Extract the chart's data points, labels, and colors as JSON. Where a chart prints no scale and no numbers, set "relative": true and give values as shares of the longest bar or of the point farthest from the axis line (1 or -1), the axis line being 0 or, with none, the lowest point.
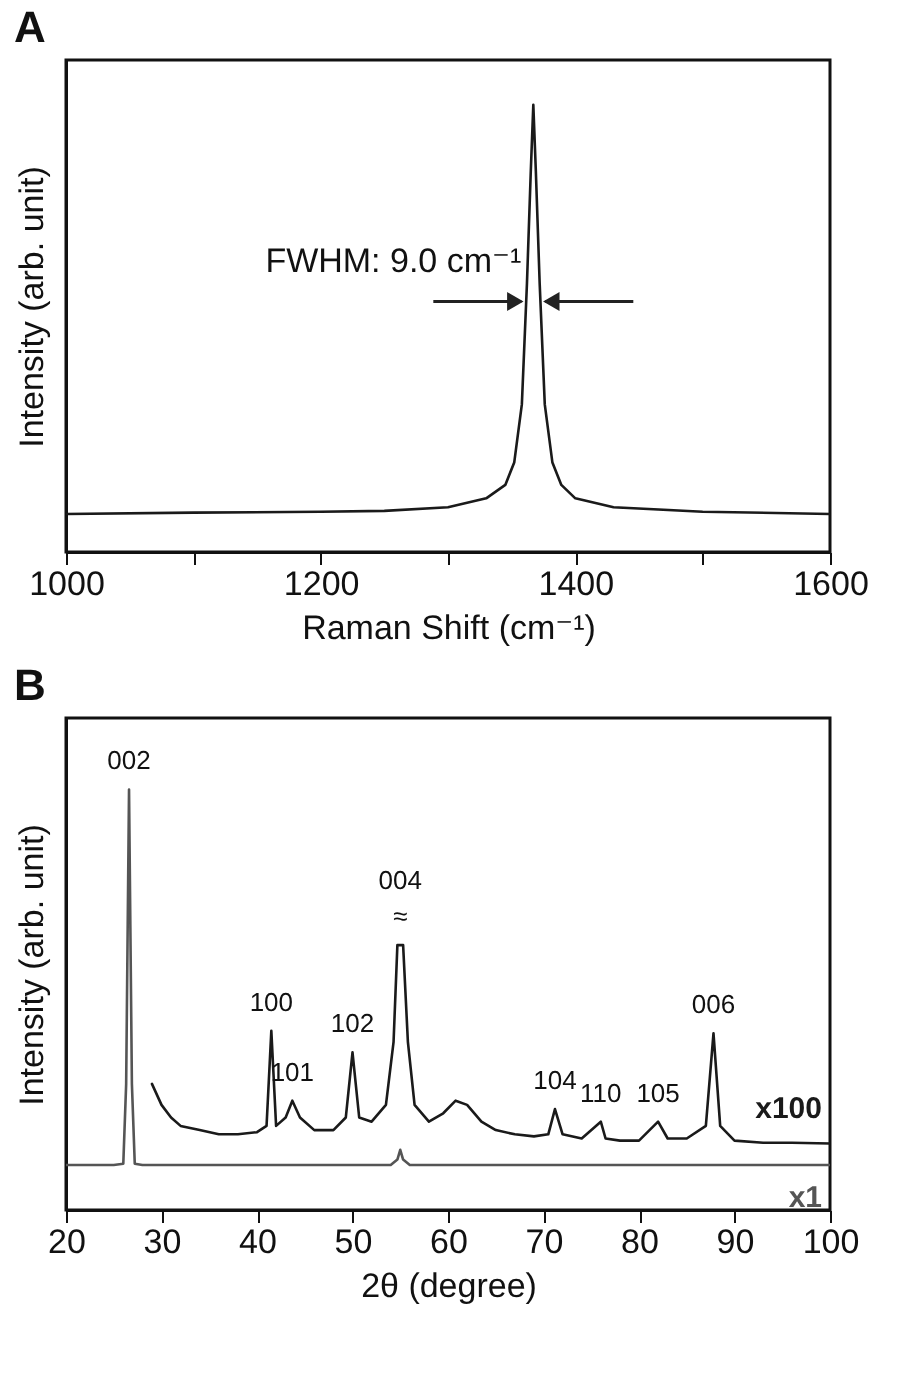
{
  "chart_data": [
    {
      "type": "line",
      "title": "A",
      "xlabel": "Raman Shift (cm⁻¹)",
      "ylabel": "Intensity (arb. unit)",
      "relative": true,
      "color": "#1a1a1a",
      "x": [
        1000,
        1100,
        1200,
        1250,
        1300,
        1330,
        1345,
        1352,
        1358,
        1362,
        1365,
        1367,
        1369,
        1372,
        1376,
        1382,
        1389,
        1400,
        1430,
        1500,
        1600
      ],
      "values": [
        0.085,
        0.088,
        0.09,
        0.092,
        0.1,
        0.12,
        0.15,
        0.2,
        0.33,
        0.6,
        0.85,
        1,
        0.85,
        0.6,
        0.33,
        0.2,
        0.15,
        0.12,
        0.1,
        0.09,
        0.085
      ],
      "annotations": [
        {
          "text": "FWHM: 9.0 cm⁻¹",
          "x": 1367,
          "y": 0.56
        }
      ],
      "xlim": [
        1000,
        1600
      ],
      "xticks": [
        1000,
        {
          "value": 1100,
          "label": null
        },
        1200,
        {
          "value": 1300,
          "label": null
        },
        1400,
        {
          "value": 1500,
          "label": null
        },
        1600
      ]
    },
    {
      "type": "line",
      "title": "B",
      "xlabel": "2θ (degree)",
      "ylabel": "Intensity (arb. unit)",
      "relative": true,
      "series": [
        {
          "name": "x100",
          "color": "#1a1a1a",
          "x": [
            29,
            30,
            31,
            32,
            34,
            36,
            38,
            40,
            41,
            41.5,
            42,
            43,
            43.7,
            44.5,
            46,
            48,
            49.3,
            50,
            50.7,
            52,
            53.5,
            54.3,
            54.7,
            55.3,
            55.8,
            56.5,
            58,
            59.5,
            60.8,
            62,
            63.5,
            65,
            67,
            69,
            70.5,
            71.2,
            72,
            74,
            76,
            76.5,
            78,
            80,
            82,
            83,
            85,
            87,
            87.8,
            88.5,
            90,
            93,
            96,
            100
          ],
          "values": [
            0.3,
            0.25,
            0.22,
            0.2,
            0.19,
            0.18,
            0.18,
            0.185,
            0.2,
            0.426,
            0.2,
            0.22,
            0.26,
            0.22,
            0.19,
            0.19,
            0.22,
            0.375,
            0.22,
            0.21,
            0.25,
            0.4,
            0.63,
            0.63,
            0.4,
            0.25,
            0.21,
            0.23,
            0.26,
            0.25,
            0.21,
            0.19,
            0.18,
            0.175,
            0.18,
            0.24,
            0.18,
            0.17,
            0.21,
            0.17,
            0.165,
            0.165,
            0.21,
            0.17,
            0.17,
            0.2,
            0.42,
            0.2,
            0.165,
            0.16,
            0.16,
            0.158
          ]
        },
        {
          "name": "x1",
          "color": "#555555",
          "x": [
            20,
            25,
            26,
            26.3,
            26.6,
            26.9,
            27.2,
            28,
            30,
            54,
            54.7,
            55,
            55.3,
            56,
            100
          ],
          "values": [
            0.107,
            0.107,
            0.11,
            0.3,
            1,
            0.3,
            0.11,
            0.107,
            0.107,
            0.107,
            0.12,
            0.143,
            0.12,
            0.107,
            0.107
          ]
        }
      ],
      "annotations": [
        {
          "text": "002",
          "x": 26.6,
          "y": 1
        },
        {
          "text": "100",
          "x": 41.5,
          "y": 0.426
        },
        {
          "text": "101",
          "x": 43.7,
          "y": 0.26
        },
        {
          "text": "102",
          "x": 50,
          "y": 0.375
        },
        {
          "text": "≈",
          "x": 55,
          "y": 0.63
        },
        {
          "text": "004",
          "x": 55,
          "y": 0.63
        },
        {
          "text": "104",
          "x": 71.2,
          "y": 0.24
        },
        {
          "text": "110",
          "x": 76,
          "y": 0.21
        },
        {
          "text": "105",
          "x": 82,
          "y": 0.21
        },
        {
          "text": "006",
          "x": 87.8,
          "y": 0.42
        }
      ],
      "xlim": [
        20,
        100
      ],
      "xticks": [
        20,
        30,
        40,
        50,
        60,
        70,
        80,
        90,
        100
      ]
    }
  ]
}
